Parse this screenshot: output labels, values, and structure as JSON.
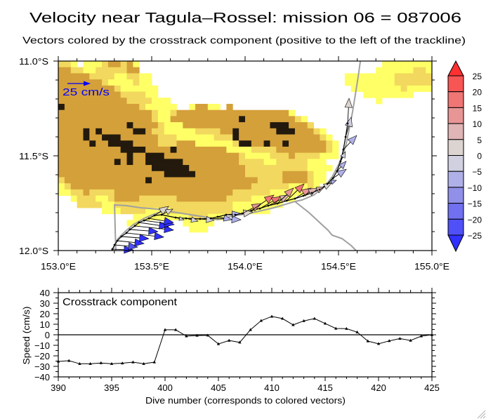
{
  "title": "Velocity near Tagula–Rossel: mission 06 = 087006",
  "subtitle": "Vectors colored by the crosstrack component (positive to the left of the trackline)",
  "chart_data": [
    {
      "type": "heatmap",
      "subtype": "vector-map",
      "title": "Velocity near Tagula–Rossel: mission 06 = 087006",
      "xlabel": "",
      "ylabel": "",
      "xlim": [
        153.0,
        155.0
      ],
      "ylim": [
        -12.0,
        -11.0
      ],
      "xticks": [
        153.0,
        153.5,
        154.0,
        154.5,
        155.0
      ],
      "xtick_labels": [
        "153.0°E",
        "153.5°E",
        "154.0°E",
        "154.5°E",
        "155.0°E"
      ],
      "yticks": [
        -11.0,
        -11.5,
        -12.0
      ],
      "ytick_labels": [
        "11.0°S",
        "11.5°S",
        "12.0°S"
      ],
      "minor_tick_step_deg": 0.1,
      "grid": false,
      "bathymetry": {
        "lon_step_deg": 0.0333,
        "lat_step_deg": 0.0323,
        "rows_north_to_south_rle": [
          "l2 y1 .1 y3 l1 t2 l1 t1 y1 .39 y8",
          "t2 l2 y2 l5 t2 .38 y6 l2 y1",
          "t5 l4 y2 l2 y2 .31 y8 l6",
          "t7 l1 y4 l1 y2 .31 y8 l6",
          "t9 l1 y6 .31 y8 l1 y4",
          "t10 l4 y2 .33 y8 .3",
          "t11 l4 y3 .33 y1 .8",
          "d1 t12 l1 y5 .2 y1 t2 y2 .1 t1 .32",
          "t15 l1 y2 l1 t18 y1 .22",
          "t15 l1 y2 t11 d1 t8 l1 y1 .20",
          "t11 d1 t4 l1 y3 t14 d3 t3 l1 .19",
          "t4 d1 t1 d1 t5 d2 t1 l2 y5 l4 t2 d1 t6 d3 t3 l1 y1 .17",
          "t4 d1 t2 d3 t6 l3 y6 l3 d1 t13 l1 y1 .16",
          "t5 d1 t2 d4 t4 l3 t3 y6 l1 d2 t2 d1 t2 d1 t6 l1 y1 .15",
          "t10 d4 t4 d1 t8 y4 l4 t8 l1 y1 .15",
          "t11 d1 t2 d3 t12 l1 y4 l3 t1 l4 y3 .15",
          "t9 d1 t1 d1 t2 d6 t9 l4 y2 l5 y3 .17",
          "t15 d6 t9 l10 y4 .16",
          "t17 d5 t8 l6 t4 l1 y2 .17",
          "l1 t13 d1 t17 l4 t4 l1 y2 .17",
          "y1 l1 t29 l6 y3 l1 y1 .18",
          "y2 l2 t1 l4 t19 l6 y6 .20",
          ".2 y1 l3 y2 l1 t4 l6 t8 l4 y7 .22",
          ".3 l4 y2 l19 y8 .24",
          ".7 y3 l4 y4 l10 y6 .26",
          ".12 y9 l3 y3 .33",
          ".11 y2 .7 y5 .35",
          ".21 y3 .36",
          ".60",
          ".60",
          ".60"
        ],
        "class_colors": {
          "t": "#d4a03a",
          "l": "#f2d85e",
          "y": "#ffff66",
          "d": "#231a0d",
          ".": "#ffffff"
        }
      },
      "scale_vector": {
        "speed_cm_s": 25,
        "label": "25 cm/s",
        "color": "#0000ff",
        "placement": "top-left"
      },
      "trackline_color": "#000000",
      "gray_lines": {
        "color": "#a0a0a0",
        "lines": [
          [
            [
              154.617,
              -11.0
            ],
            [
              154.605,
              -11.085
            ],
            [
              154.59,
              -11.178
            ],
            [
              154.575,
              -11.27
            ],
            [
              154.556,
              -11.363
            ],
            [
              154.541,
              -11.437
            ],
            [
              154.53,
              -11.474
            ],
            [
              154.5,
              -11.548
            ],
            [
              154.466,
              -11.611
            ],
            [
              154.429,
              -11.659
            ],
            [
              154.368,
              -11.707
            ],
            [
              154.305,
              -11.733
            ],
            [
              154.267,
              -11.741
            ],
            [
              154.154,
              -11.774
            ],
            [
              154.041,
              -11.8
            ],
            [
              153.929,
              -11.819
            ],
            [
              153.853,
              -11.837
            ],
            [
              153.778,
              -11.822
            ],
            [
              153.665,
              -11.804
            ],
            [
              153.59,
              -11.793
            ],
            [
              153.526,
              -11.781
            ],
            [
              153.44,
              -11.774
            ],
            [
              153.365,
              -11.763
            ],
            [
              153.301,
              -11.759
            ],
            [
              153.305,
              -11.9
            ],
            [
              153.308,
              -12.0
            ]
          ],
          [
            [
              154.267,
              -11.741
            ],
            [
              154.342,
              -11.8
            ],
            [
              154.444,
              -11.893
            ],
            [
              154.466,
              -11.919
            ],
            [
              154.519,
              -11.937
            ],
            [
              154.568,
              -11.974
            ],
            [
              154.594,
              -12.0
            ]
          ],
          [
            [
              153.289,
              -12.0
            ],
            [
              153.32,
              -11.937
            ],
            [
              153.357,
              -11.9
            ],
            [
              153.402,
              -11.863
            ],
            [
              153.459,
              -11.83
            ],
            [
              153.515,
              -11.807
            ],
            [
              153.59,
              -11.781
            ]
          ]
        ]
      },
      "vectors": [
        {
          "dive": 390,
          "lon": 153.289,
          "lat": -11.993,
          "u": 22.7,
          "v": -0.8
        },
        {
          "dive": 391,
          "lon": 153.301,
          "lat": -11.97,
          "u": 25.0,
          "v": -2.3
        },
        {
          "dive": 392,
          "lon": 153.316,
          "lat": -11.948,
          "u": 28.8,
          "v": -3.0
        },
        {
          "dive": 393,
          "lon": 153.338,
          "lat": -11.926,
          "u": 29.5,
          "v": -2.3
        },
        {
          "dive": 394,
          "lon": 153.365,
          "lat": -11.907,
          "u": 40.2,
          "v": -4.5
        },
        {
          "dive": 395,
          "lon": 153.383,
          "lat": -11.889,
          "u": 30.3,
          "v": -2.3
        },
        {
          "dive": 396,
          "lon": 153.41,
          "lat": -11.87,
          "u": 41.7,
          "v": -4.5
        },
        {
          "dive": 397,
          "lon": 153.432,
          "lat": -11.852,
          "u": 31.8,
          "v": -4.5
        },
        {
          "dive": 398,
          "lon": 153.459,
          "lat": -11.841,
          "u": 32.6,
          "v": -4.5
        },
        {
          "dive": 399,
          "lon": 153.485,
          "lat": -11.83,
          "u": 26.5,
          "v": -4.5
        },
        {
          "dive": 400,
          "lon": 153.515,
          "lat": -11.815,
          "u": 15.2,
          "v": 9.8
        },
        {
          "dive": 401,
          "lon": 153.553,
          "lat": -11.811,
          "u": 12.1,
          "v": 6.1
        },
        {
          "dive": 402,
          "lon": 153.628,
          "lat": -11.826,
          "u": 9.1,
          "v": -2.3
        },
        {
          "dive": 403,
          "lon": 153.684,
          "lat": -11.83,
          "u": 12.9,
          "v": -3.0
        },
        {
          "dive": 404,
          "lon": 153.759,
          "lat": -11.833,
          "u": 15.2,
          "v": -1.5
        },
        {
          "dive": 405,
          "lon": 153.816,
          "lat": -11.83,
          "u": 32.6,
          "v": -1.5
        },
        {
          "dive": 406,
          "lon": 153.853,
          "lat": -11.822,
          "u": 15.2,
          "v": -3.0
        },
        {
          "dive": 407,
          "lon": 153.898,
          "lat": -11.811,
          "u": 15.2,
          "v": 1.5
        },
        {
          "dive": 408,
          "lon": 153.947,
          "lat": -11.811,
          "u": 18.9,
          "v": 3.0
        },
        {
          "dive": 409,
          "lon": 153.985,
          "lat": -11.804,
          "u": 20.5,
          "v": 10.6
        },
        {
          "dive": 410,
          "lon": 154.034,
          "lat": -11.789,
          "u": 24.2,
          "v": 16.7
        },
        {
          "dive": 411,
          "lon": 154.079,
          "lat": -11.778,
          "u": 22.7,
          "v": 12.9
        },
        {
          "dive": 412,
          "lon": 154.124,
          "lat": -11.763,
          "u": 22.7,
          "v": 11.4
        },
        {
          "dive": 413,
          "lon": 154.173,
          "lat": -11.752,
          "u": 17.4,
          "v": 16.7
        },
        {
          "dive": 414,
          "lon": 154.222,
          "lat": -11.737,
          "u": 18.9,
          "v": 18.2
        },
        {
          "dive": 415,
          "lon": 154.267,
          "lat": -11.726,
          "u": 17.4,
          "v": 11.4
        },
        {
          "dive": 416,
          "lon": 154.312,
          "lat": -11.711,
          "u": 15.2,
          "v": 8.3
        },
        {
          "dive": 417,
          "lon": 154.357,
          "lat": -11.696,
          "u": 13.6,
          "v": 6.8
        },
        {
          "dive": 418,
          "lon": 154.398,
          "lat": -11.678,
          "u": 12.9,
          "v": 6.8
        },
        {
          "dive": 419,
          "lon": 154.44,
          "lat": -11.648,
          "u": 9.8,
          "v": 3.8
        },
        {
          "dive": 420,
          "lon": 154.47,
          "lat": -11.619,
          "u": 14.4,
          "v": 9.8
        },
        {
          "dive": 421,
          "lon": 154.492,
          "lat": -11.581,
          "u": 9.8,
          "v": 10.6
        },
        {
          "dive": 422,
          "lon": 154.511,
          "lat": -11.53,
          "u": 5.3,
          "v": 10.6
        },
        {
          "dive": 423,
          "lon": 154.526,
          "lat": -11.467,
          "u": 14.4,
          "v": 15.2
        },
        {
          "dive": 424,
          "lon": 154.538,
          "lat": -11.4,
          "u": 6.1,
          "v": 21.2
        },
        {
          "dive": 425,
          "lon": 154.549,
          "lat": -11.33,
          "u": 1.5,
          "v": 27.3
        }
      ],
      "colorbar": {
        "placement": "right",
        "levels": [
          -25,
          -20,
          -15,
          -10,
          -5,
          0,
          5,
          10,
          15,
          20,
          25
        ],
        "labels_top_to_bottom": [
          "25",
          "20",
          "15",
          "10",
          "5",
          "0",
          "−5",
          "−10",
          "−15",
          "−20",
          "−25"
        ],
        "bin_colors_low_to_high": [
          "#5050f8",
          "#7070f0",
          "#9090e8",
          "#b0b0e8",
          "#d0d0e0",
          "#dcd4d0",
          "#e0b5b5",
          "#e89595",
          "#f07575",
          "#f85555"
        ],
        "under_color": "#3030ff",
        "over_color": "#ff3030"
      }
    },
    {
      "type": "line",
      "title": "Crosstrack component",
      "xlabel": "Dive number (corresponds to colored vectors)",
      "ylabel": "Speed (cm/s)",
      "xlim": [
        390,
        425
      ],
      "ylim": [
        -40,
        40
      ],
      "xticks": [
        390,
        395,
        400,
        405,
        410,
        415,
        420,
        425
      ],
      "xtick_labels": [
        "390",
        "395",
        "400",
        "405",
        "410",
        "415",
        "420",
        "425"
      ],
      "yticks": [
        40,
        30,
        20,
        10,
        0,
        -10,
        -20,
        -30,
        -40
      ],
      "ytick_labels": [
        "40",
        "30",
        "20",
        "10",
        "0",
        "−10",
        "−20",
        "−30",
        "−40"
      ],
      "grid": false,
      "reference_line_y": 0,
      "x": [
        390,
        391,
        392,
        393,
        394,
        395,
        396,
        397,
        398,
        399,
        400,
        401,
        402,
        403,
        404,
        405,
        406,
        407,
        408,
        409,
        410,
        411,
        412,
        413,
        414,
        415,
        416,
        417,
        418,
        419,
        420,
        421,
        422,
        423,
        424,
        425
      ],
      "series": [
        {
          "name": "Crosstrack component",
          "marker": "triangle",
          "color": "#000000",
          "values": [
            -25.3,
            -24.6,
            -27.5,
            -27.5,
            -26.8,
            -27.5,
            -27.0,
            -26.0,
            -27.5,
            -26.0,
            4.7,
            4.7,
            -1.3,
            -0.7,
            -0.5,
            -8.7,
            -5.4,
            -7.2,
            4.7,
            13.4,
            17.4,
            15.4,
            9.4,
            13.2,
            15.4,
            10.7,
            6.0,
            5.8,
            2.5,
            -6.0,
            -8.5,
            -5.8,
            -3.6,
            -5.4,
            -1.3,
            0.0
          ]
        }
      ]
    }
  ]
}
